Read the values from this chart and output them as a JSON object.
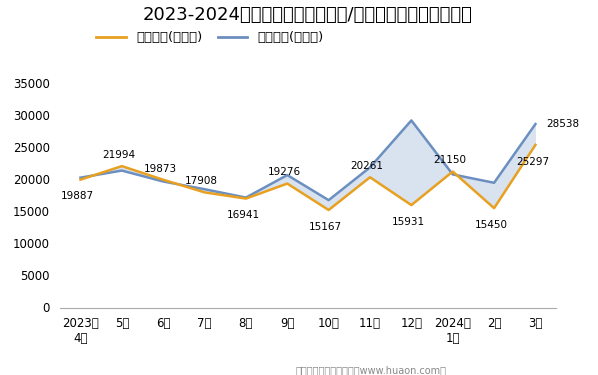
{
  "title": "2023-2024年包头市（境内目的地/货源地）进、出口额统计",
  "x_labels": [
    "2023年\n4月",
    "5月",
    "6月",
    "7月",
    "8月",
    "9月",
    "10月",
    "11月",
    "12月",
    "2024年\n1月",
    "2月",
    "3月"
  ],
  "export_values": [
    19887,
    21994,
    19873,
    17908,
    16941,
    19276,
    15167,
    20261,
    15931,
    21150,
    15450,
    25297
  ],
  "import_values": [
    20200,
    21300,
    19600,
    18400,
    17100,
    20600,
    16700,
    21800,
    29100,
    20700,
    19400,
    28538
  ],
  "export_label": "出口总额(万美元)",
  "import_label": "进口总额(万美元)",
  "export_color": "#E8A020",
  "import_color": "#6B8FC0",
  "fill_alpha": 0.25,
  "ylim": [
    0,
    35000
  ],
  "yticks": [
    0,
    5000,
    10000,
    15000,
    20000,
    25000,
    30000,
    35000
  ],
  "footer": "制图：华经产业研究院（www.huaon.com）",
  "background_color": "#ffffff",
  "title_fontsize": 13,
  "legend_fontsize": 9.5,
  "tick_fontsize": 8.5,
  "annotation_fontsize": 7.5
}
